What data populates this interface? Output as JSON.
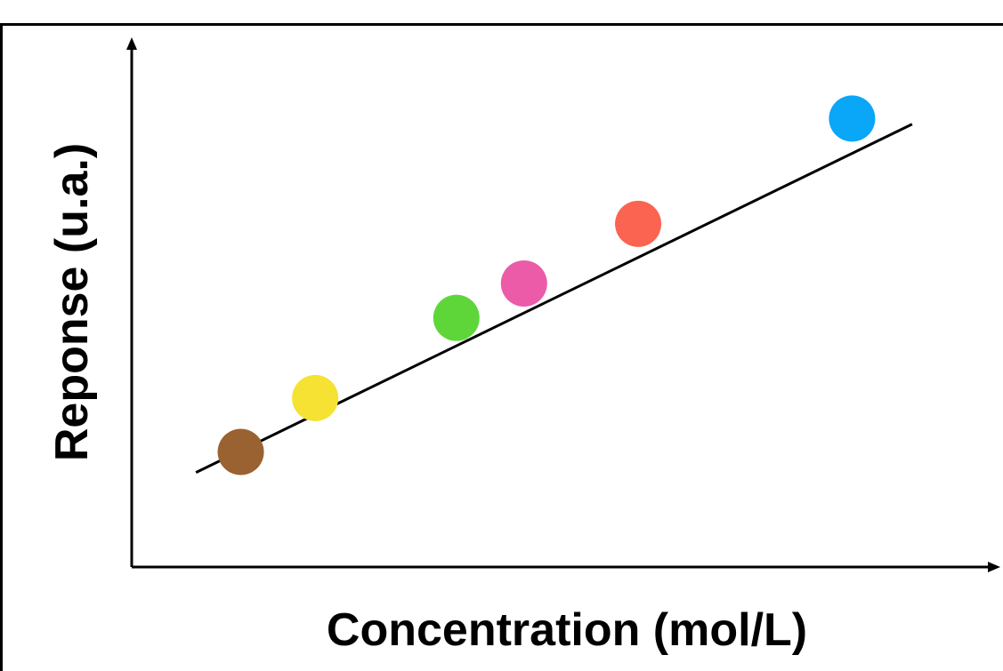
{
  "chart_data": {
    "type": "scatter",
    "title": "",
    "xlabel": "Concentration (mol/L)",
    "ylabel": "Reponse (u.a.)",
    "xlim": [
      0,
      10
    ],
    "ylim": [
      0,
      10
    ],
    "grid": false,
    "legend": "none",
    "points": [
      {
        "x": 1.29,
        "y": 2.24,
        "color": "#9a6230"
      },
      {
        "x": 2.17,
        "y": 3.29,
        "color": "#f5e232"
      },
      {
        "x": 3.84,
        "y": 4.85,
        "color": "#5ed63a"
      },
      {
        "x": 4.64,
        "y": 5.52,
        "color": "#ec5ba8"
      },
      {
        "x": 5.99,
        "y": 6.68,
        "color": "#fb6450"
      },
      {
        "x": 8.52,
        "y": 8.73,
        "color": "#0aa6f7"
      }
    ],
    "fit_line": {
      "x": [
        0.76,
        9.23
      ],
      "y": [
        1.84,
        8.62
      ],
      "color": "#000000"
    }
  }
}
